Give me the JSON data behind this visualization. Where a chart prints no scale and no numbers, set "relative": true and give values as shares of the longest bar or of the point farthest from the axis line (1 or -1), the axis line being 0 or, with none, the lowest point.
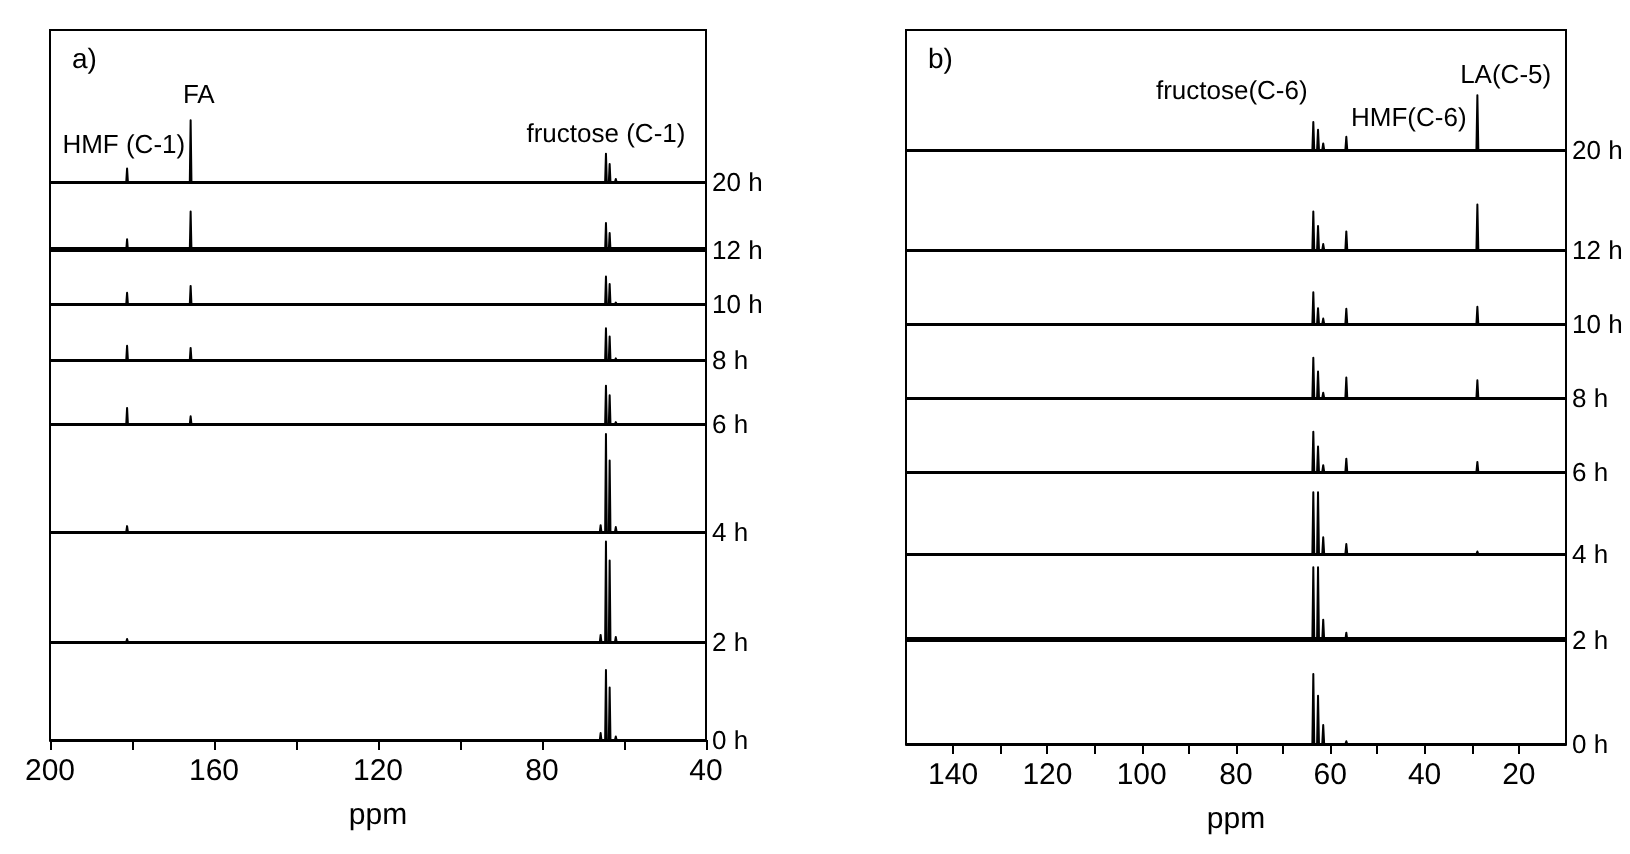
{
  "chart_data": [
    {
      "type": "line",
      "relative": true,
      "title": "a)",
      "xlim": [
        200,
        40
      ],
      "tick_labels": false,
      "annotations": [
        "HMF (C-1)",
        "FA",
        "fructose (C-1)"
      ],
      "series": [
        {
          "name": "20 h",
          "color": "#000000",
          "x": [
            200,
            181.4,
            181.2,
            181,
            165.9,
            165.7,
            165.5,
            65.9,
            65.7,
            65.5,
            64.6,
            64.4,
            64.2,
            63.7,
            63.5,
            63.3,
            62.2,
            62,
            61.8,
            40
          ],
          "values": [
            0,
            0,
            0.22,
            0,
            0,
            1,
            0,
            0,
            0,
            0,
            0,
            0.46,
            0,
            0,
            0.29,
            0,
            0,
            0.05,
            0,
            0
          ]
        }
      ]
    },
    {
      "type": "line",
      "relative": true,
      "xlim": [
        200,
        40
      ],
      "tick_labels": false,
      "series": [
        {
          "name": "12 h",
          "color": "#000000",
          "x": [
            200,
            181.4,
            181.2,
            181,
            165.9,
            165.7,
            165.5,
            65.9,
            65.7,
            65.5,
            64.6,
            64.4,
            64.2,
            63.7,
            63.5,
            63.3,
            62.2,
            62,
            61.8,
            40
          ],
          "values": [
            0,
            0,
            0.28,
            0,
            0,
            1,
            0,
            0,
            0,
            0,
            0,
            0.7,
            0,
            0,
            0.44,
            0,
            0,
            0.05,
            0,
            0
          ]
        }
      ]
    },
    {
      "type": "line",
      "relative": true,
      "xlim": [
        200,
        40
      ],
      "tick_labels": false,
      "series": [
        {
          "name": "10 h",
          "color": "#000000",
          "x": [
            200,
            181.4,
            181.2,
            181,
            165.9,
            165.7,
            165.5,
            65.9,
            65.7,
            65.5,
            64.6,
            64.4,
            64.2,
            63.7,
            63.5,
            63.3,
            62.2,
            62,
            61.8,
            40
          ],
          "values": [
            0,
            0,
            0.41,
            0,
            0,
            0.66,
            0,
            0,
            0,
            0,
            0,
            1,
            0,
            0,
            0.73,
            0,
            0,
            0.05,
            0,
            0
          ]
        }
      ]
    },
    {
      "type": "line",
      "relative": true,
      "xlim": [
        200,
        40
      ],
      "tick_labels": false,
      "series": [
        {
          "name": "8 h",
          "color": "#000000",
          "x": [
            200,
            181.4,
            181.2,
            181,
            165.9,
            165.7,
            165.5,
            65.9,
            65.7,
            65.5,
            64.6,
            64.4,
            64.2,
            63.7,
            63.5,
            63.3,
            62.2,
            62,
            61.8,
            40
          ],
          "values": [
            0,
            0,
            0.45,
            0,
            0,
            0.38,
            0,
            0,
            0,
            0,
            0,
            1,
            0,
            0,
            0.74,
            0,
            0,
            0.05,
            0,
            0
          ]
        }
      ]
    },
    {
      "type": "line",
      "relative": true,
      "xlim": [
        200,
        40
      ],
      "tick_labels": false,
      "series": [
        {
          "name": "6 h",
          "color": "#000000",
          "x": [
            200,
            181.4,
            181.2,
            181,
            165.9,
            165.7,
            165.5,
            65.9,
            65.7,
            65.5,
            64.6,
            64.4,
            64.2,
            63.7,
            63.5,
            63.3,
            62.2,
            62,
            61.8,
            40
          ],
          "values": [
            0,
            0,
            0.42,
            0,
            0,
            0.2,
            0,
            0,
            0,
            0,
            0,
            1,
            0,
            0,
            0.75,
            0,
            0,
            0.05,
            0,
            0
          ]
        }
      ]
    },
    {
      "type": "line",
      "relative": true,
      "xlim": [
        200,
        40
      ],
      "tick_labels": false,
      "series": [
        {
          "name": "4 h",
          "color": "#000000",
          "x": [
            200,
            181.4,
            181.2,
            181,
            165.9,
            165.7,
            165.5,
            65.9,
            65.7,
            65.5,
            64.6,
            64.4,
            64.2,
            63.7,
            63.5,
            63.3,
            62.2,
            62,
            61.8,
            40
          ],
          "values": [
            0,
            0,
            0.06,
            0,
            0,
            0,
            0,
            0,
            0.07,
            0,
            0,
            1,
            0,
            0,
            0.73,
            0,
            0,
            0.05,
            0,
            0
          ]
        }
      ]
    },
    {
      "type": "line",
      "relative": true,
      "xlim": [
        200,
        40
      ],
      "tick_labels": false,
      "series": [
        {
          "name": "2 h",
          "color": "#000000",
          "x": [
            200,
            181.4,
            181.2,
            181,
            165.9,
            165.7,
            165.5,
            65.9,
            65.7,
            65.5,
            64.6,
            64.4,
            64.2,
            63.7,
            63.5,
            63.3,
            62.2,
            62,
            61.8,
            40
          ],
          "values": [
            0,
            0,
            0.03,
            0,
            0,
            0,
            0,
            0,
            0.07,
            0,
            0,
            1,
            0,
            0,
            0.81,
            0,
            0,
            0.05,
            0,
            0
          ]
        }
      ]
    },
    {
      "type": "line",
      "relative": true,
      "xlabel": "ppm",
      "xlim": [
        200,
        40
      ],
      "xticks": [
        200,
        {
          "value": 180,
          "label": null
        },
        160,
        {
          "value": 140,
          "label": null
        },
        120,
        {
          "value": 100,
          "label": null
        },
        80,
        {
          "value": 60,
          "label": null
        },
        40
      ],
      "tick_labels": "x",
      "series": [
        {
          "name": "0 h",
          "color": "#000000",
          "x": [
            200,
            181.4,
            181.2,
            181,
            165.9,
            165.7,
            165.5,
            65.9,
            65.7,
            65.5,
            64.6,
            64.4,
            64.2,
            63.7,
            63.5,
            63.3,
            62.2,
            62,
            61.8,
            40
          ],
          "values": [
            0,
            0,
            0,
            0,
            0,
            0,
            0,
            0,
            0.1,
            0,
            0,
            1,
            0,
            0,
            0.75,
            0,
            0,
            0.05,
            0,
            0
          ]
        }
      ]
    },
    {
      "type": "line",
      "relative": true,
      "title": "b)",
      "xlim": [
        150,
        10
      ],
      "tick_labels": false,
      "annotations": [
        "fructose(C-6)",
        "HMF(C-6)",
        "LA(C-5)"
      ],
      "series": [
        {
          "name": "20 h",
          "color": "#000000",
          "x": [
            150,
            63.8,
            63.6,
            63.4,
            62.8,
            62.6,
            62.4,
            61.7,
            61.5,
            61.3,
            56.8,
            56.6,
            56.4,
            29,
            28.8,
            28.6,
            10
          ],
          "values": [
            0,
            0,
            0.51,
            0,
            0,
            0.37,
            0,
            0,
            0.12,
            0,
            0,
            0.24,
            0,
            0,
            1,
            0,
            0
          ]
        }
      ]
    },
    {
      "type": "line",
      "relative": true,
      "xlim": [
        150,
        10
      ],
      "tick_labels": false,
      "series": [
        {
          "name": "12 h",
          "color": "#000000",
          "x": [
            150,
            63.8,
            63.6,
            63.4,
            62.8,
            62.6,
            62.4,
            61.7,
            61.5,
            61.3,
            56.8,
            56.6,
            56.4,
            29,
            28.8,
            28.6,
            10
          ],
          "values": [
            0,
            0,
            0.85,
            0,
            0,
            0.53,
            0,
            0,
            0.13,
            0,
            0,
            0.41,
            0,
            0,
            1,
            0,
            0
          ]
        }
      ]
    },
    {
      "type": "line",
      "relative": true,
      "xlim": [
        150,
        10
      ],
      "tick_labels": false,
      "series": [
        {
          "name": "10 h",
          "color": "#000000",
          "x": [
            150,
            63.8,
            63.6,
            63.4,
            62.8,
            62.6,
            62.4,
            61.7,
            61.5,
            61.3,
            56.8,
            56.6,
            56.4,
            29,
            28.8,
            28.6,
            10
          ],
          "values": [
            0,
            0,
            1,
            0,
            0,
            0.5,
            0,
            0,
            0.17,
            0,
            0,
            0.48,
            0,
            0,
            0.54,
            0,
            0
          ]
        }
      ]
    },
    {
      "type": "line",
      "relative": true,
      "xlim": [
        150,
        10
      ],
      "tick_labels": false,
      "series": [
        {
          "name": "8 h",
          "color": "#000000",
          "x": [
            150,
            63.8,
            63.6,
            63.4,
            62.8,
            62.6,
            62.4,
            61.7,
            61.5,
            61.3,
            56.8,
            56.6,
            56.4,
            29,
            28.8,
            28.6,
            10
          ],
          "values": [
            0,
            0,
            1,
            0,
            0,
            0.66,
            0,
            0,
            0.13,
            0,
            0,
            0.51,
            0,
            0,
            0.44,
            0,
            0
          ]
        }
      ]
    },
    {
      "type": "line",
      "relative": true,
      "xlim": [
        150,
        10
      ],
      "tick_labels": false,
      "series": [
        {
          "name": "6 h",
          "color": "#000000",
          "x": [
            150,
            63.8,
            63.6,
            63.4,
            62.8,
            62.6,
            62.4,
            61.7,
            61.5,
            61.3,
            56.8,
            56.6,
            56.4,
            29,
            28.8,
            28.6,
            10
          ],
          "values": [
            0,
            0,
            1,
            0,
            0,
            0.63,
            0,
            0,
            0.17,
            0,
            0,
            0.33,
            0,
            0,
            0.25,
            0,
            0
          ]
        }
      ]
    },
    {
      "type": "line",
      "relative": true,
      "xlim": [
        150,
        10
      ],
      "tick_labels": false,
      "series": [
        {
          "name": "4 h",
          "color": "#000000",
          "x": [
            150,
            63.8,
            63.6,
            63.4,
            62.8,
            62.6,
            62.4,
            61.7,
            61.5,
            61.3,
            56.8,
            56.6,
            56.4,
            29,
            28.8,
            28.6,
            10
          ],
          "values": [
            0,
            0,
            1,
            0,
            0,
            1,
            0,
            0,
            0.27,
            0,
            0,
            0.16,
            0,
            0,
            0.04,
            0,
            0
          ]
        }
      ]
    },
    {
      "type": "line",
      "relative": true,
      "xlim": [
        150,
        10
      ],
      "tick_labels": false,
      "series": [
        {
          "name": "2 h",
          "color": "#000000",
          "x": [
            150,
            63.8,
            63.6,
            63.4,
            62.8,
            62.6,
            62.4,
            61.7,
            61.5,
            61.3,
            56.8,
            56.6,
            56.4,
            29,
            28.8,
            28.6,
            10
          ],
          "values": [
            0,
            0,
            1,
            0,
            0,
            1,
            0,
            0,
            0.28,
            0,
            0,
            0.1,
            0,
            0,
            0,
            0,
            0
          ]
        }
      ]
    },
    {
      "type": "line",
      "relative": true,
      "xlabel": "ppm",
      "xlim": [
        150,
        10
      ],
      "xticks": [
        140,
        {
          "value": 130,
          "label": null
        },
        120,
        {
          "value": 110,
          "label": null
        },
        100,
        {
          "value": 90,
          "label": null
        },
        80,
        {
          "value": 70,
          "label": null
        },
        60,
        {
          "value": 50,
          "label": null
        },
        40,
        {
          "value": 30,
          "label": null
        },
        20
      ],
      "tick_labels": "x",
      "series": [
        {
          "name": "0 h",
          "color": "#000000",
          "x": [
            150,
            63.8,
            63.6,
            63.4,
            62.8,
            62.6,
            62.4,
            61.7,
            61.5,
            61.3,
            56.8,
            56.6,
            56.4,
            29,
            28.8,
            28.6,
            10
          ],
          "values": [
            0,
            0,
            1,
            0,
            0,
            0.69,
            0,
            0,
            0.27,
            0,
            0,
            0.04,
            0,
            0,
            0,
            0,
            0
          ]
        }
      ]
    }
  ]
}
